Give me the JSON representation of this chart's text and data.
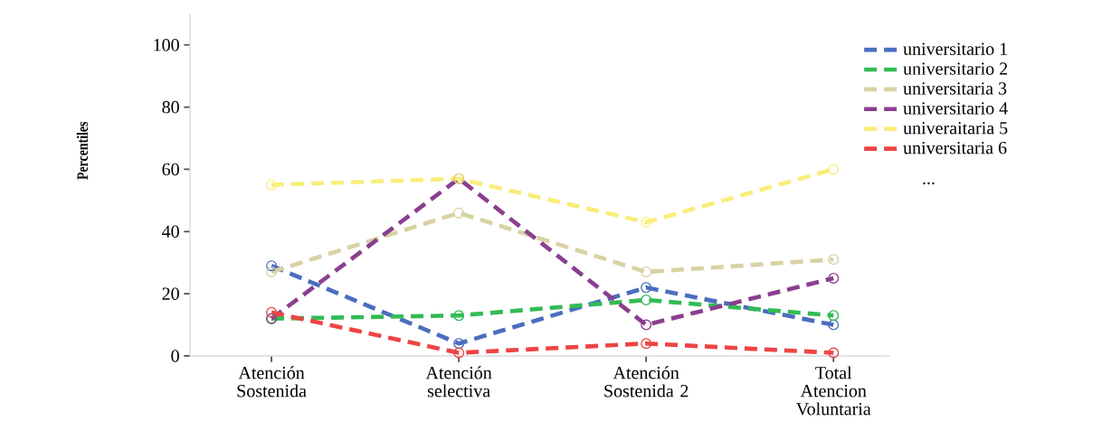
{
  "chart_data": {
    "type": "line",
    "ylabel": "Percentiles",
    "categories": [
      "Atención Sostenida",
      "Atención selectiva",
      "Atención Sostenida 2",
      "Total Atencion Voluntaria"
    ],
    "series": [
      {
        "name": "universitario 1",
        "color": "#4a6ebf",
        "values": [
          29,
          4,
          22,
          10
        ]
      },
      {
        "name": "universitario 2",
        "color": "#33bb55",
        "values": [
          12,
          13,
          18,
          13
        ]
      },
      {
        "name": "universitaria 3",
        "color": "#d8d2a4",
        "values": [
          27,
          46,
          27,
          31
        ]
      },
      {
        "name": "universitario 4",
        "color": "#8b3f8f",
        "values": [
          12,
          57,
          10,
          25
        ]
      },
      {
        "name": "univeraitaria 5",
        "color": "#f8ee7c",
        "values": [
          55,
          57,
          43,
          60
        ]
      },
      {
        "name": "universitaria 6",
        "color": "#ee4444",
        "values": [
          14,
          1,
          4,
          1
        ]
      }
    ],
    "annotations": [
      "..."
    ],
    "ylim": [
      0,
      110
    ],
    "yticks": [
      0,
      20,
      40,
      60,
      80,
      100
    ],
    "marker": "circle",
    "line_style": "dashed",
    "legend": "right",
    "grid": false
  }
}
